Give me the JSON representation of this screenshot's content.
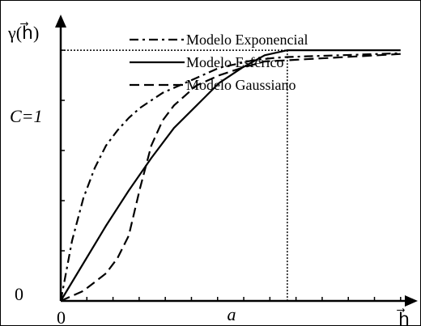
{
  "chart_data": {
    "type": "line",
    "y_axis_label": "γ(h⃗)",
    "x_axis_label": "h⃗",
    "y_zero_label": "0",
    "x_zero_label": "0",
    "sill_label": "C=1",
    "range_label": "a",
    "sill": 1,
    "range": 1,
    "xlim": [
      0,
      1.59
    ],
    "ylim": [
      0,
      1.11
    ],
    "legend_position": "top-right",
    "series": [
      {
        "name": "Modelo Exponencial",
        "style": "dash-dot",
        "x": [
          0,
          0.05,
          0.1,
          0.15,
          0.2,
          0.25,
          0.3,
          0.35,
          0.4,
          0.45,
          0.5,
          0.55,
          0.6,
          0.65,
          0.7,
          0.75,
          0.8,
          0.85,
          0.9,
          0.95,
          1.0,
          1.1,
          1.2,
          1.3,
          1.4,
          1.5
        ],
        "y": [
          0,
          0.24,
          0.41,
          0.53,
          0.62,
          0.68,
          0.73,
          0.77,
          0.8,
          0.83,
          0.85,
          0.87,
          0.89,
          0.91,
          0.93,
          0.94,
          0.95,
          0.96,
          0.965,
          0.97,
          0.973,
          0.976,
          0.979,
          0.982,
          0.985,
          0.988
        ]
      },
      {
        "name": "Modelo Esférico",
        "style": "solid",
        "x": [
          0,
          0.1,
          0.2,
          0.3,
          0.4,
          0.5,
          0.6,
          0.7,
          0.8,
          0.9,
          1.0,
          1.1,
          1.2,
          1.3,
          1.4,
          1.5
        ],
        "y": [
          0,
          0.15,
          0.3,
          0.44,
          0.57,
          0.69,
          0.78,
          0.87,
          0.93,
          0.98,
          1.0,
          1.0,
          1.0,
          1.0,
          1.0,
          1.0
        ]
      },
      {
        "name": "Modelo Gaussiano",
        "style": "dashed",
        "x": [
          0,
          0.1,
          0.2,
          0.25,
          0.3,
          0.35,
          0.4,
          0.45,
          0.5,
          0.55,
          0.6,
          0.7,
          0.8,
          0.9,
          1.0,
          1.1,
          1.2,
          1.3,
          1.4,
          1.5
        ],
        "y": [
          0,
          0.04,
          0.11,
          0.17,
          0.26,
          0.45,
          0.62,
          0.72,
          0.78,
          0.82,
          0.86,
          0.9,
          0.93,
          0.955,
          0.96,
          0.965,
          0.97,
          0.975,
          0.98,
          0.985
        ]
      }
    ]
  }
}
